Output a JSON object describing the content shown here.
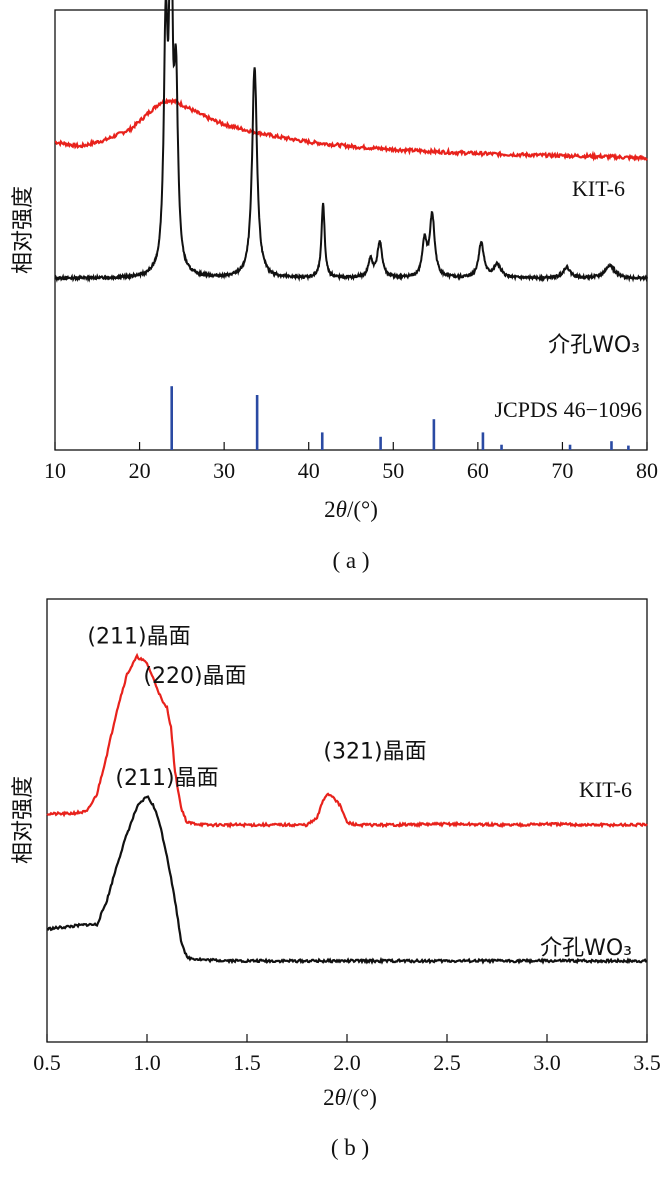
{
  "chart_data": [
    {
      "type": "line",
      "panel_label": "( a )",
      "xlabel_prefix": "2",
      "xlabel_theta": "θ",
      "xlabel_suffix": "/(°)",
      "ylabel": "相对强度",
      "xlim": [
        10,
        80
      ],
      "xticks": [
        "10",
        "20",
        "30",
        "40",
        "50",
        "60",
        "70",
        "80"
      ],
      "series": [
        {
          "name": "KIT-6",
          "color": "#e8221c",
          "x": [
            10,
            13,
            16,
            19,
            21,
            22.5,
            23.5,
            24.5,
            26,
            28,
            30,
            33,
            36,
            40,
            45,
            50,
            55,
            60,
            65,
            70,
            75,
            80
          ],
          "y": [
            0.7,
            0.69,
            0.705,
            0.73,
            0.765,
            0.79,
            0.795,
            0.79,
            0.775,
            0.755,
            0.74,
            0.725,
            0.713,
            0.7,
            0.69,
            0.683,
            0.678,
            0.674,
            0.671,
            0.669,
            0.667,
            0.663
          ]
        },
        {
          "name": "介孔WO₃",
          "color": "#111111",
          "peaks": [
            {
              "x": 23.1,
              "h": 0.54,
              "w": 0.45
            },
            {
              "x": 23.7,
              "h": 0.88,
              "w": 0.3
            },
            {
              "x": 24.3,
              "h": 0.42,
              "w": 0.45
            },
            {
              "x": 33.6,
              "h": 0.48,
              "w": 0.55
            },
            {
              "x": 41.7,
              "h": 0.17,
              "w": 0.35
            },
            {
              "x": 47.3,
              "h": 0.04,
              "w": 0.5
            },
            {
              "x": 48.4,
              "h": 0.08,
              "w": 0.55
            },
            {
              "x": 53.7,
              "h": 0.08,
              "w": 0.5
            },
            {
              "x": 54.6,
              "h": 0.14,
              "w": 0.55
            },
            {
              "x": 60.4,
              "h": 0.08,
              "w": 0.6
            },
            {
              "x": 62.3,
              "h": 0.03,
              "w": 0.8
            },
            {
              "x": 70.5,
              "h": 0.025,
              "w": 0.8
            },
            {
              "x": 75.6,
              "h": 0.03,
              "w": 1.0
            }
          ],
          "baseline": 0.39
        }
      ],
      "reference": {
        "name": "JCPDS 46−1096",
        "color": "#2a4aa3",
        "lines": [
          {
            "x": 23.8,
            "h": 0.145
          },
          {
            "x": 33.9,
            "h": 0.125
          },
          {
            "x": 41.6,
            "h": 0.04
          },
          {
            "x": 48.5,
            "h": 0.03
          },
          {
            "x": 54.8,
            "h": 0.07
          },
          {
            "x": 60.6,
            "h": 0.04
          },
          {
            "x": 62.8,
            "h": 0.012
          },
          {
            "x": 70.9,
            "h": 0.012
          },
          {
            "x": 75.8,
            "h": 0.02
          },
          {
            "x": 77.8,
            "h": 0.01
          }
        ]
      }
    },
    {
      "type": "line",
      "panel_label": "( b )",
      "xlabel_prefix": "2",
      "xlabel_theta": "θ",
      "xlabel_suffix": "/(°)",
      "ylabel": "相对强度",
      "xlim": [
        0.5,
        3.5
      ],
      "xticks": [
        "0.5",
        "1.0",
        "1.5",
        "2.0",
        "2.5",
        "3.0",
        "3.5"
      ],
      "series": [
        {
          "name": "KIT-6",
          "color": "#e8221c",
          "x": [
            0.5,
            0.6,
            0.7,
            0.75,
            0.8,
            0.85,
            0.9,
            0.95,
            1.0,
            1.05,
            1.08,
            1.1,
            1.12,
            1.14,
            1.17,
            1.2,
            1.3,
            1.5,
            1.7,
            1.8,
            1.85,
            1.88,
            1.9,
            1.93,
            1.97,
            2.0,
            2.05,
            2.2,
            2.5,
            2.8,
            3.0,
            3.2,
            3.5
          ],
          "y": [
            0.515,
            0.515,
            0.52,
            0.56,
            0.65,
            0.75,
            0.83,
            0.87,
            0.855,
            0.8,
            0.765,
            0.755,
            0.71,
            0.61,
            0.53,
            0.495,
            0.49,
            0.49,
            0.49,
            0.49,
            0.505,
            0.545,
            0.56,
            0.555,
            0.53,
            0.495,
            0.49,
            0.49,
            0.492,
            0.49,
            0.492,
            0.49,
            0.49
          ]
        },
        {
          "name": "介孔WO₃",
          "color": "#111111",
          "x": [
            0.5,
            0.6,
            0.7,
            0.75,
            0.8,
            0.85,
            0.9,
            0.95,
            1.0,
            1.03,
            1.06,
            1.1,
            1.14,
            1.17,
            1.2,
            1.3,
            1.5,
            1.7,
            2.0,
            2.5,
            3.0,
            3.5
          ],
          "y": [
            0.255,
            0.26,
            0.265,
            0.265,
            0.32,
            0.4,
            0.47,
            0.53,
            0.555,
            0.535,
            0.5,
            0.42,
            0.32,
            0.23,
            0.19,
            0.185,
            0.183,
            0.183,
            0.183,
            0.183,
            0.183,
            0.183
          ]
        }
      ],
      "annotations": [
        {
          "text": "(211)晶面",
          "x": 0.96,
          "y": 0.9
        },
        {
          "text": "(220)晶面",
          "x": 1.24,
          "y": 0.81
        },
        {
          "text": "(321)晶面",
          "x": 2.14,
          "y": 0.64
        },
        {
          "text": "(211)晶面",
          "x": 1.1,
          "y": 0.58
        }
      ]
    }
  ]
}
